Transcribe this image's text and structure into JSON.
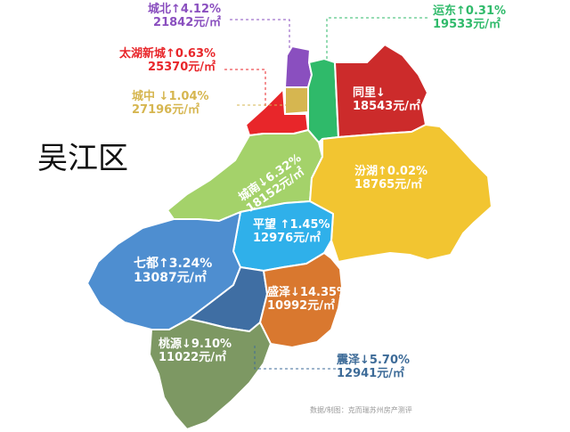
{
  "title": "吴江区",
  "source": "数据/制图：克而瑞苏州房产测评",
  "colors": {
    "chengbei": "#8a4fbf",
    "taihu": "#e8262a",
    "chengzhong": "#d6b650",
    "yundong": "#2fba6a",
    "tongli": "#cc2b2b",
    "fenhu": "#f2c531",
    "chengnan": "#a4d26a",
    "pingwang": "#2fb0ea",
    "qidu": "#4e8ed0",
    "gap": "#3f6ea3",
    "shengze": "#d9782f",
    "taoyuan": "#7d9863",
    "zhenze": "#3d6b98"
  },
  "regions": {
    "chengbei": {
      "name": "城北",
      "change": "↑4.12%",
      "price": "21842元/㎡"
    },
    "taihu": {
      "name": "太湖新城",
      "change": "↑0.63%",
      "price": "25370元/㎡"
    },
    "chengzhong": {
      "name": "城中",
      "change": "↓1.04%",
      "price": "27196元/㎡"
    },
    "yundong": {
      "name": "运东",
      "change": "↑0.31%",
      "price": "19533元/㎡"
    },
    "tongli": {
      "name": "同里",
      "change": "↓",
      "price": "18543元/㎡"
    },
    "fenhu": {
      "name": "汾湖",
      "change": "↑0.02%",
      "price": "18765元/㎡"
    },
    "chengnan": {
      "name": "城南",
      "change": "↓6.32%",
      "price": "18152元/㎡"
    },
    "pingwang": {
      "name": "平望",
      "change": "↑1.45%",
      "price": "12976元/㎡"
    },
    "qidu": {
      "name": "七都",
      "change": "↑3.24%",
      "price": "13087元/㎡"
    },
    "shengze": {
      "name": "盛泽",
      "change": "↓14.35%",
      "price": "10992元/㎡"
    },
    "taoyuan": {
      "name": "桃源",
      "change": "↓9.10%",
      "price": "11022元/㎡"
    },
    "zhenze": {
      "name": "震泽",
      "change": "↓5.70%",
      "price": "12941元/㎡"
    }
  }
}
